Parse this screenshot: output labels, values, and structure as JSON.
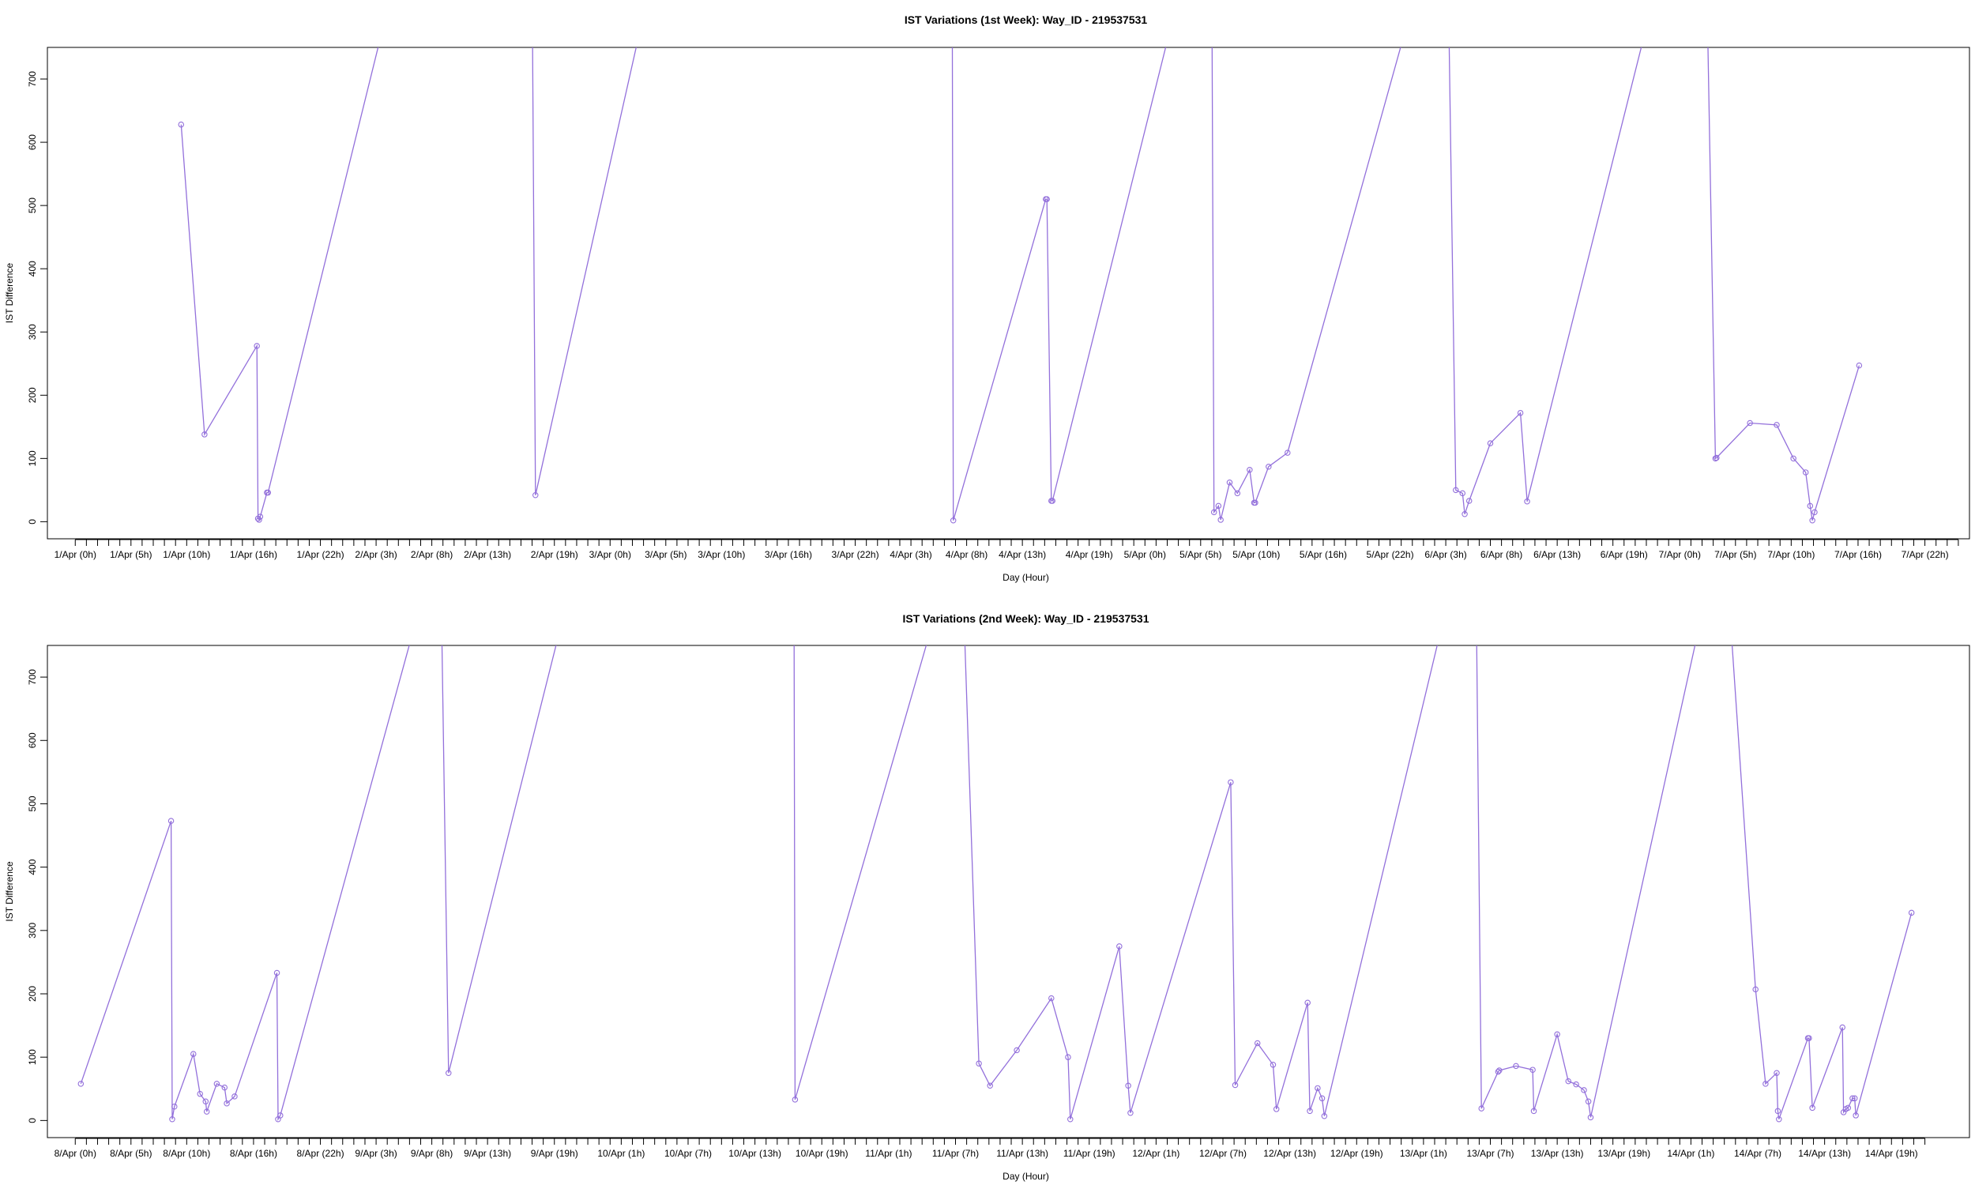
{
  "colors": {
    "line": "#9370DB",
    "axis": "#000000",
    "background": "#ffffff"
  },
  "chart_data": [
    {
      "type": "line",
      "title": "IST Variations (1st Week): Way_ID - 219537531",
      "xlabel": "Day (Hour)",
      "ylabel": "IST Difference",
      "ylim": [
        -27,
        750
      ],
      "xlim": [
        -2.5,
        170
      ],
      "yticks": [
        0,
        100,
        200,
        300,
        400,
        500,
        600,
        700
      ],
      "xtick_labels": [
        "1/Apr (0h)",
        "1/Apr (5h)",
        "1/Apr (10h)",
        "1/Apr (16h)",
        "1/Apr (22h)",
        "2/Apr (3h)",
        "2/Apr (8h)",
        "2/Apr (13h)",
        "2/Apr (19h)",
        "3/Apr (0h)",
        "3/Apr (5h)",
        "3/Apr (10h)",
        "3/Apr (16h)",
        "3/Apr (22h)",
        "4/Apr (3h)",
        "4/Apr (8h)",
        "4/Apr (13h)",
        "4/Apr (19h)",
        "5/Apr (0h)",
        "5/Apr (5h)",
        "5/Apr (10h)",
        "5/Apr (16h)",
        "5/Apr (22h)",
        "6/Apr (3h)",
        "6/Apr (8h)",
        "6/Apr (13h)",
        "6/Apr (19h)",
        "7/Apr (0h)",
        "7/Apr (5h)",
        "7/Apr (10h)",
        "7/Apr (16h)",
        "7/Apr (22h)"
      ],
      "xtick_hours": [
        0,
        5,
        10,
        16,
        22,
        27,
        32,
        37,
        43,
        48,
        53,
        58,
        64,
        70,
        75,
        80,
        85,
        91,
        96,
        101,
        106,
        112,
        118,
        123,
        128,
        133,
        139,
        144,
        149,
        154,
        160,
        166
      ],
      "series": [
        {
          "values": [
            [
              9.5,
              628
            ],
            [
              11.6,
              138
            ],
            [
              16.3,
              278
            ],
            [
              16.4,
              5
            ],
            [
              16.5,
              3
            ],
            [
              16.6,
              8
            ],
            [
              17.2,
              46
            ],
            [
              17.3,
              46
            ],
            [
              29,
              880
            ],
            [
              41,
              880
            ],
            [
              41.3,
              42
            ],
            [
              52,
              880
            ],
            [
              78.7,
              880
            ],
            [
              78.8,
              2
            ],
            [
              87.1,
              510
            ],
            [
              87.2,
              510
            ],
            [
              87.6,
              33
            ],
            [
              87.7,
              33
            ],
            [
              99.7,
              880
            ],
            [
              102,
              880
            ],
            [
              102.2,
              15
            ],
            [
              102.6,
              25
            ],
            [
              102.8,
              3
            ],
            [
              103.6,
              62
            ],
            [
              104.3,
              45
            ],
            [
              105.4,
              82
            ],
            [
              105.8,
              30
            ],
            [
              105.9,
              30
            ],
            [
              107.1,
              87
            ],
            [
              108.8,
              109
            ],
            [
              121,
              880
            ],
            [
              123.2,
              880
            ],
            [
              123.9,
              50
            ],
            [
              124.5,
              45
            ],
            [
              124.7,
              12
            ],
            [
              125.1,
              33
            ],
            [
              127,
              124
            ],
            [
              129.7,
              172
            ],
            [
              130.3,
              32
            ],
            [
              142.4,
              880
            ],
            [
              146.4,
              880
            ],
            [
              147.2,
              100
            ],
            [
              147.3,
              101
            ],
            [
              150.3,
              156
            ],
            [
              152.7,
              153
            ],
            [
              154.2,
              100
            ],
            [
              155.3,
              78
            ],
            [
              155.7,
              25
            ],
            [
              155.9,
              2
            ],
            [
              156.1,
              15
            ],
            [
              160.1,
              247
            ]
          ]
        }
      ]
    },
    {
      "type": "line",
      "title": "IST Variations (2nd Week): Way_ID - 219537531",
      "xlabel": "Day (Hour)",
      "ylabel": "IST Difference",
      "ylim": [
        -27,
        750
      ],
      "xlim": [
        -2.5,
        170
      ],
      "yticks": [
        0,
        100,
        200,
        300,
        400,
        500,
        600,
        700
      ],
      "xtick_labels": [
        "8/Apr (0h)",
        "8/Apr (5h)",
        "8/Apr (10h)",
        "8/Apr (16h)",
        "8/Apr (22h)",
        "9/Apr (3h)",
        "9/Apr (8h)",
        "9/Apr (13h)",
        "9/Apr (19h)",
        "10/Apr (1h)",
        "10/Apr (7h)",
        "10/Apr (13h)",
        "10/Apr (19h)",
        "11/Apr (1h)",
        "11/Apr (7h)",
        "11/Apr (13h)",
        "11/Apr (19h)",
        "12/Apr (1h)",
        "12/Apr (7h)",
        "12/Apr (13h)",
        "12/Apr (19h)",
        "13/Apr (1h)",
        "13/Apr (7h)",
        "13/Apr (13h)",
        "13/Apr (19h)",
        "14/Apr (1h)",
        "14/Apr (7h)",
        "14/Apr (13h)",
        "14/Apr (19h)"
      ],
      "xtick_hours": [
        0,
        5,
        10,
        16,
        22,
        27,
        32,
        37,
        43,
        49,
        55,
        61,
        67,
        73,
        79,
        85,
        91,
        97,
        103,
        109,
        115,
        121,
        127,
        133,
        139,
        145,
        151,
        157,
        163
      ],
      "series": [
        {
          "values": [
            [
              0.5,
              58
            ],
            [
              8.6,
              473
            ],
            [
              8.7,
              2
            ],
            [
              8.9,
              22
            ],
            [
              10.6,
              105
            ],
            [
              11.2,
              42
            ],
            [
              11.7,
              30
            ],
            [
              11.8,
              14
            ],
            [
              12.7,
              58
            ],
            [
              13.4,
              52
            ],
            [
              13.6,
              27
            ],
            [
              14.3,
              38
            ],
            [
              18.1,
              233
            ],
            [
              18.2,
              2
            ],
            [
              18.4,
              8
            ],
            [
              32,
              880
            ],
            [
              32.8,
              880
            ],
            [
              33.5,
              75
            ],
            [
              45,
              880
            ],
            [
              64.5,
              880
            ],
            [
              64.6,
              33
            ],
            [
              78.5,
              880
            ],
            [
              79.6,
              880
            ],
            [
              81.1,
              90
            ],
            [
              82.1,
              55
            ],
            [
              84.5,
              111
            ],
            [
              87.6,
              193
            ],
            [
              89.1,
              100
            ],
            [
              89.3,
              2
            ],
            [
              93.7,
              275
            ],
            [
              94.5,
              55
            ],
            [
              94.7,
              12
            ],
            [
              103.7,
              534
            ],
            [
              104.1,
              56
            ],
            [
              106.1,
              122
            ],
            [
              107.5,
              88
            ],
            [
              107.8,
              18
            ],
            [
              110.6,
              186
            ],
            [
              110.8,
              15
            ],
            [
              111.5,
              51
            ],
            [
              111.9,
              35
            ],
            [
              112.1,
              7
            ],
            [
              124,
              880
            ],
            [
              125.7,
              880
            ],
            [
              126.2,
              19
            ],
            [
              127.7,
              77
            ],
            [
              127.8,
              79
            ],
            [
              129.3,
              86
            ],
            [
              130.8,
              80
            ],
            [
              130.9,
              15
            ],
            [
              133,
              136
            ],
            [
              134,
              62
            ],
            [
              134.7,
              57
            ],
            [
              135.4,
              48
            ],
            [
              135.8,
              30
            ],
            [
              136,
              5
            ],
            [
              147,
              880
            ],
            [
              148.2,
              880
            ],
            [
              150.8,
              207
            ],
            [
              151.7,
              58
            ],
            [
              152.7,
              75
            ],
            [
              152.8,
              15
            ],
            [
              152.9,
              2
            ],
            [
              155.5,
              130
            ],
            [
              155.6,
              130
            ],
            [
              155.9,
              20
            ],
            [
              158.6,
              147
            ],
            [
              158.7,
              13
            ],
            [
              158.9,
              18
            ],
            [
              159.1,
              20
            ],
            [
              159.5,
              35
            ],
            [
              159.7,
              35
            ],
            [
              159.8,
              8
            ],
            [
              164.8,
              328
            ]
          ]
        }
      ]
    }
  ]
}
